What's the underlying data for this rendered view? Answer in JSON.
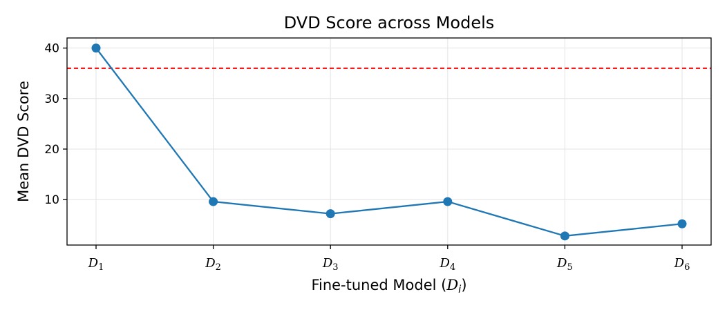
{
  "chart_data": {
    "type": "line",
    "title": "DVD Score across Models",
    "xlabel": "Fine-tuned Model (",
    "xlabel_symbol": "D",
    "xlabel_subscript": "i",
    "xlabel_close": ")",
    "ylabel": "Mean DVD Score",
    "categories": [
      {
        "symbol": "D",
        "sub": "1"
      },
      {
        "symbol": "D",
        "sub": "2"
      },
      {
        "symbol": "D",
        "sub": "3"
      },
      {
        "symbol": "D",
        "sub": "4"
      },
      {
        "symbol": "D",
        "sub": "5"
      },
      {
        "symbol": "D",
        "sub": "6"
      }
    ],
    "series": [
      {
        "values": [
          40.0,
          9.6,
          7.2,
          9.6,
          2.8,
          5.2
        ],
        "color": "#1f77b4",
        "marker": "circle"
      }
    ],
    "reference_line": {
      "y": 36,
      "color": "#ff0000",
      "style": "dashed"
    },
    "ylim": [
      1.0,
      42.0
    ],
    "yticks": [
      10,
      20,
      30,
      40
    ],
    "grid": true
  }
}
